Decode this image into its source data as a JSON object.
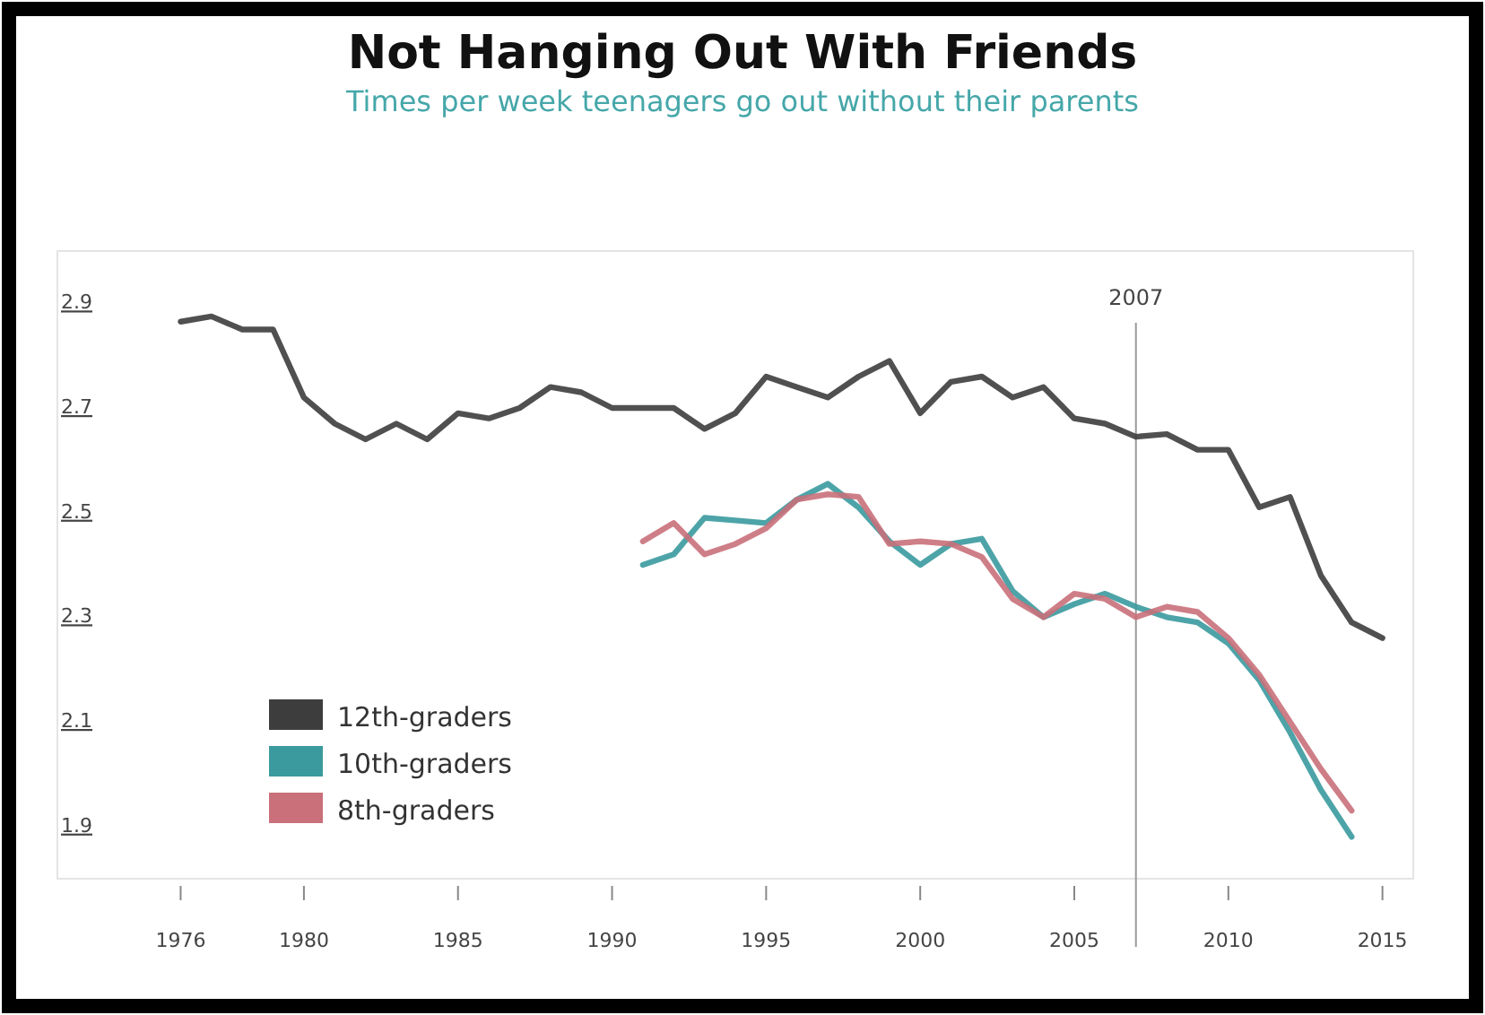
{
  "chart_data": {
    "type": "line",
    "title": "Not Hanging Out With Friends",
    "subtitle": "Times per week teenagers go out without their parents",
    "xlim": [
      1972,
      2016
    ],
    "xticks": [
      1976,
      1980,
      1985,
      1990,
      1995,
      2000,
      2005,
      2010,
      2015
    ],
    "ylim": [
      1.8,
      3.0
    ],
    "yticks": [
      1.9,
      2.1,
      2.3,
      2.5,
      2.7,
      2.9
    ],
    "grid": false,
    "legend": "bottom left",
    "marker": "none",
    "line_style": "solid",
    "ref_lines": [
      {
        "axis": "x",
        "value": 2007,
        "label": "2007",
        "color": "#999999"
      }
    ],
    "series": [
      {
        "name": "12th-graders",
        "color": "#3d3d3d",
        "x": [
          1976,
          1977,
          1978,
          1979,
          1980,
          1981,
          1982,
          1983,
          1984,
          1985,
          1986,
          1987,
          1988,
          1989,
          1990,
          1991,
          1992,
          1993,
          1994,
          1995,
          1996,
          1997,
          1998,
          1999,
          2000,
          2001,
          2002,
          2003,
          2004,
          2005,
          2006,
          2007,
          2008,
          2009,
          2010,
          2011,
          2012,
          2013,
          2014,
          2015
        ],
        "values": [
          2.865,
          2.875,
          2.85,
          2.85,
          2.72,
          2.67,
          2.64,
          2.67,
          2.64,
          2.69,
          2.68,
          2.7,
          2.74,
          2.73,
          2.7,
          2.7,
          2.7,
          2.66,
          2.69,
          2.76,
          2.74,
          2.72,
          2.76,
          2.79,
          2.69,
          2.75,
          2.76,
          2.72,
          2.74,
          2.68,
          2.67,
          2.645,
          2.65,
          2.62,
          2.62,
          2.51,
          2.53,
          2.38,
          2.29,
          2.26
        ]
      },
      {
        "name": "10th-graders",
        "color": "#3a9a9e",
        "x": [
          1991,
          1992,
          1993,
          1994,
          1995,
          1996,
          1997,
          1998,
          1999,
          2000,
          2001,
          2002,
          2003,
          2004,
          2005,
          2006,
          2007,
          2008,
          2009,
          2010,
          2011,
          2012,
          2013,
          2014
        ],
        "values": [
          2.4,
          2.42,
          2.49,
          2.485,
          2.48,
          2.525,
          2.555,
          2.51,
          2.445,
          2.4,
          2.44,
          2.45,
          2.35,
          2.3,
          2.325,
          2.345,
          2.32,
          2.3,
          2.29,
          2.25,
          2.18,
          2.08,
          1.97,
          1.88
        ]
      },
      {
        "name": "8th-graders",
        "color": "#c9707a",
        "x": [
          1991,
          1992,
          1993,
          1994,
          1995,
          1996,
          1997,
          1998,
          1999,
          2000,
          2001,
          2002,
          2003,
          2004,
          2005,
          2006,
          2007,
          2008,
          2009,
          2010,
          2011,
          2012,
          2013,
          2014
        ],
        "values": [
          2.445,
          2.48,
          2.42,
          2.44,
          2.47,
          2.525,
          2.535,
          2.53,
          2.44,
          2.445,
          2.44,
          2.415,
          2.335,
          2.3,
          2.345,
          2.335,
          2.3,
          2.32,
          2.31,
          2.26,
          2.19,
          2.1,
          2.01,
          1.93
        ]
      }
    ]
  }
}
